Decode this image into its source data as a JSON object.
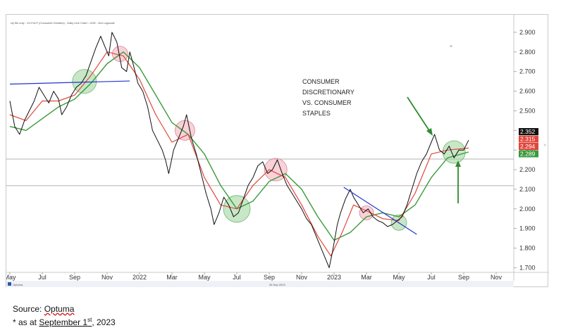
{
  "header_small": "xly file only - XLY/XLP (Consumer Dividers) - Daily Line Chart - USD - Not Logscale",
  "watermark": "Optuma",
  "footer_date": "06 Sep 2023",
  "annotation": [
    "CONSUMER",
    "DISCRETIONARY",
    "VS. CONSUMER",
    "STAPLES"
  ],
  "source": {
    "prefix": "Source: ",
    "name": "Optuma"
  },
  "as_at": {
    "prefix": "* as at ",
    "month_day": "September 1",
    "sup": "st",
    "year": ", 2023"
  },
  "colors": {
    "price": "#111111",
    "ma_fast": "#e0473c",
    "ma_slow": "#3a9a3a",
    "trendline": "#2233cc",
    "green_circle": "#8fcf8f",
    "pink_circle": "#f2a6b2",
    "arrow": "#2e8b2e"
  },
  "chart_data": {
    "type": "line",
    "title": "",
    "xlabel": "",
    "ylabel": "",
    "ylim": [
      1.68,
      2.95
    ],
    "x_ticks": [
      {
        "label": "May",
        "t": 0
      },
      {
        "label": "Jul",
        "t": 2
      },
      {
        "label": "Sep",
        "t": 4
      },
      {
        "label": "Nov",
        "t": 6
      },
      {
        "label": "2022",
        "t": 8
      },
      {
        "label": "Mar",
        "t": 10
      },
      {
        "label": "May",
        "t": 12
      },
      {
        "label": "Jul",
        "t": 14
      },
      {
        "label": "Sep",
        "t": 16
      },
      {
        "label": "Nov",
        "t": 18
      },
      {
        "label": "2023",
        "t": 20
      },
      {
        "label": "Mar",
        "t": 22
      },
      {
        "label": "May",
        "t": 24
      },
      {
        "label": "Jul",
        "t": 26
      },
      {
        "label": "Sep",
        "t": 28
      },
      {
        "label": "Nov",
        "t": 30
      }
    ],
    "y_ticks": [
      1.7,
      1.8,
      1.9,
      2.0,
      2.1,
      2.2,
      2.3,
      2.4,
      2.5,
      2.6,
      2.7,
      2.8,
      2.9
    ],
    "y_tick_labels": [
      "1.700",
      "1.800",
      "1.900",
      "2.000",
      "2.100",
      "2.200",
      "2.300",
      "2.400",
      "2.500",
      "2.600",
      "2.700",
      "2.800",
      "2.900"
    ],
    "series": [
      {
        "color": "#111111",
        "points": [
          [
            0,
            2.55
          ],
          [
            0.3,
            2.42
          ],
          [
            0.6,
            2.38
          ],
          [
            0.9,
            2.45
          ],
          [
            1.2,
            2.5
          ],
          [
            1.5,
            2.55
          ],
          [
            1.8,
            2.62
          ],
          [
            2.1,
            2.58
          ],
          [
            2.4,
            2.54
          ],
          [
            2.7,
            2.6
          ],
          [
            3.0,
            2.56
          ],
          [
            3.2,
            2.48
          ],
          [
            3.5,
            2.52
          ],
          [
            3.8,
            2.58
          ],
          [
            4.1,
            2.62
          ],
          [
            4.4,
            2.64
          ],
          [
            4.7,
            2.68
          ],
          [
            5.0,
            2.75
          ],
          [
            5.3,
            2.82
          ],
          [
            5.6,
            2.88
          ],
          [
            5.9,
            2.82
          ],
          [
            6.1,
            2.78
          ],
          [
            6.3,
            2.9
          ],
          [
            6.6,
            2.85
          ],
          [
            6.9,
            2.72
          ],
          [
            7.2,
            2.7
          ],
          [
            7.4,
            2.8
          ],
          [
            7.6,
            2.74
          ],
          [
            7.9,
            2.64
          ],
          [
            8.2,
            2.6
          ],
          [
            8.5,
            2.52
          ],
          [
            8.8,
            2.4
          ],
          [
            9.1,
            2.35
          ],
          [
            9.4,
            2.3
          ],
          [
            9.6,
            2.25
          ],
          [
            9.8,
            2.18
          ],
          [
            10.1,
            2.3
          ],
          [
            10.4,
            2.36
          ],
          [
            10.7,
            2.42
          ],
          [
            10.9,
            2.48
          ],
          [
            11.2,
            2.36
          ],
          [
            11.5,
            2.28
          ],
          [
            11.8,
            2.18
          ],
          [
            12.1,
            2.08
          ],
          [
            12.4,
            2.0
          ],
          [
            12.6,
            1.92
          ],
          [
            12.9,
            1.98
          ],
          [
            13.2,
            2.06
          ],
          [
            13.5,
            2.02
          ],
          [
            13.8,
            1.96
          ],
          [
            14.1,
            1.98
          ],
          [
            14.4,
            2.05
          ],
          [
            14.7,
            2.12
          ],
          [
            15.0,
            2.16
          ],
          [
            15.3,
            2.22
          ],
          [
            15.6,
            2.24
          ],
          [
            15.9,
            2.18
          ],
          [
            16.2,
            2.2
          ],
          [
            16.5,
            2.25
          ],
          [
            16.8,
            2.18
          ],
          [
            17.1,
            2.12
          ],
          [
            17.4,
            2.08
          ],
          [
            17.7,
            2.04
          ],
          [
            18.0,
            2.0
          ],
          [
            18.3,
            1.95
          ],
          [
            18.6,
            1.92
          ],
          [
            18.9,
            1.86
          ],
          [
            19.2,
            1.8
          ],
          [
            19.5,
            1.74
          ],
          [
            19.7,
            1.7
          ],
          [
            19.9,
            1.78
          ],
          [
            20.2,
            1.92
          ],
          [
            20.4,
            1.98
          ],
          [
            20.7,
            2.05
          ],
          [
            21.0,
            2.1
          ],
          [
            21.2,
            2.06
          ],
          [
            21.5,
            2.02
          ],
          [
            21.8,
            1.98
          ],
          [
            22.1,
            2.0
          ],
          [
            22.4,
            1.96
          ],
          [
            22.7,
            1.94
          ],
          [
            23.0,
            1.93
          ],
          [
            23.3,
            1.91
          ],
          [
            23.6,
            1.92
          ],
          [
            23.9,
            1.94
          ],
          [
            24.2,
            1.96
          ],
          [
            24.5,
            2.02
          ],
          [
            24.8,
            2.1
          ],
          [
            25.1,
            2.18
          ],
          [
            25.4,
            2.24
          ],
          [
            25.7,
            2.28
          ],
          [
            26.0,
            2.34
          ],
          [
            26.2,
            2.38
          ],
          [
            26.5,
            2.3
          ],
          [
            26.8,
            2.28
          ],
          [
            27.1,
            2.32
          ],
          [
            27.4,
            2.26
          ],
          [
            27.7,
            2.3
          ],
          [
            28.0,
            2.3
          ],
          [
            28.3,
            2.35
          ]
        ]
      },
      {
        "color": "#e0473c",
        "points": [
          [
            0,
            2.48
          ],
          [
            1,
            2.45
          ],
          [
            2,
            2.55
          ],
          [
            3,
            2.55
          ],
          [
            4,
            2.58
          ],
          [
            5,
            2.68
          ],
          [
            6,
            2.8
          ],
          [
            7,
            2.78
          ],
          [
            8,
            2.66
          ],
          [
            9,
            2.48
          ],
          [
            10,
            2.34
          ],
          [
            11,
            2.38
          ],
          [
            12,
            2.16
          ],
          [
            13,
            2.02
          ],
          [
            14,
            2.0
          ],
          [
            15,
            2.12
          ],
          [
            16,
            2.2
          ],
          [
            17,
            2.16
          ],
          [
            18,
            2.02
          ],
          [
            19,
            1.86
          ],
          [
            19.8,
            1.76
          ],
          [
            20.5,
            1.88
          ],
          [
            21.2,
            2.02
          ],
          [
            22,
            1.99
          ],
          [
            23,
            1.95
          ],
          [
            24,
            1.94
          ],
          [
            25,
            2.08
          ],
          [
            26,
            2.28
          ],
          [
            27,
            2.3
          ],
          [
            28.3,
            2.31
          ]
        ]
      },
      {
        "color": "#3a9a3a",
        "points": [
          [
            0,
            2.42
          ],
          [
            1,
            2.4
          ],
          [
            2,
            2.46
          ],
          [
            3,
            2.52
          ],
          [
            4,
            2.56
          ],
          [
            5,
            2.64
          ],
          [
            6,
            2.74
          ],
          [
            7,
            2.8
          ],
          [
            8,
            2.72
          ],
          [
            9,
            2.58
          ],
          [
            10,
            2.44
          ],
          [
            11,
            2.38
          ],
          [
            12,
            2.28
          ],
          [
            13,
            2.12
          ],
          [
            14,
            2.0
          ],
          [
            15,
            2.04
          ],
          [
            16,
            2.14
          ],
          [
            17,
            2.18
          ],
          [
            18,
            2.1
          ],
          [
            19,
            1.96
          ],
          [
            20,
            1.84
          ],
          [
            21,
            1.88
          ],
          [
            22,
            1.96
          ],
          [
            23,
            1.98
          ],
          [
            24,
            1.96
          ],
          [
            25,
            2.02
          ],
          [
            26,
            2.16
          ],
          [
            27,
            2.26
          ],
          [
            28.3,
            2.29
          ]
        ]
      }
    ],
    "current_tags": [
      {
        "label": "2.352",
        "value": 2.352,
        "color": "#111111"
      },
      {
        "label": "2.315",
        "value": 2.315,
        "color": "#e0473c"
      },
      {
        "label": "2.294",
        "value": 2.294,
        "color": "#e0473c"
      },
      {
        "label": "2.289",
        "value": 2.289,
        "color": "#3a9a3a"
      }
    ],
    "h_lines": [
      2.254,
      2.118
    ],
    "trendlines": [
      {
        "from": [
          0,
          2.636
        ],
        "to": [
          7.4,
          2.652
        ]
      },
      {
        "from": [
          20.6,
          2.11
        ],
        "to": [
          25.1,
          1.87
        ]
      }
    ],
    "circles": [
      {
        "t": 4.6,
        "v": 2.65,
        "r": 17,
        "kind": "green"
      },
      {
        "t": 6.8,
        "v": 2.79,
        "r": 11,
        "kind": "pink"
      },
      {
        "t": 10.8,
        "v": 2.4,
        "r": 14,
        "kind": "pink"
      },
      {
        "t": 14.0,
        "v": 2.0,
        "r": 19,
        "kind": "green"
      },
      {
        "t": 16.4,
        "v": 2.2,
        "r": 16,
        "kind": "pink"
      },
      {
        "t": 22.0,
        "v": 1.98,
        "r": 10,
        "kind": "pink"
      },
      {
        "t": 24.0,
        "v": 1.93,
        "r": 11,
        "kind": "green"
      },
      {
        "t": 27.4,
        "v": 2.29,
        "r": 16,
        "kind": "green"
      }
    ]
  }
}
